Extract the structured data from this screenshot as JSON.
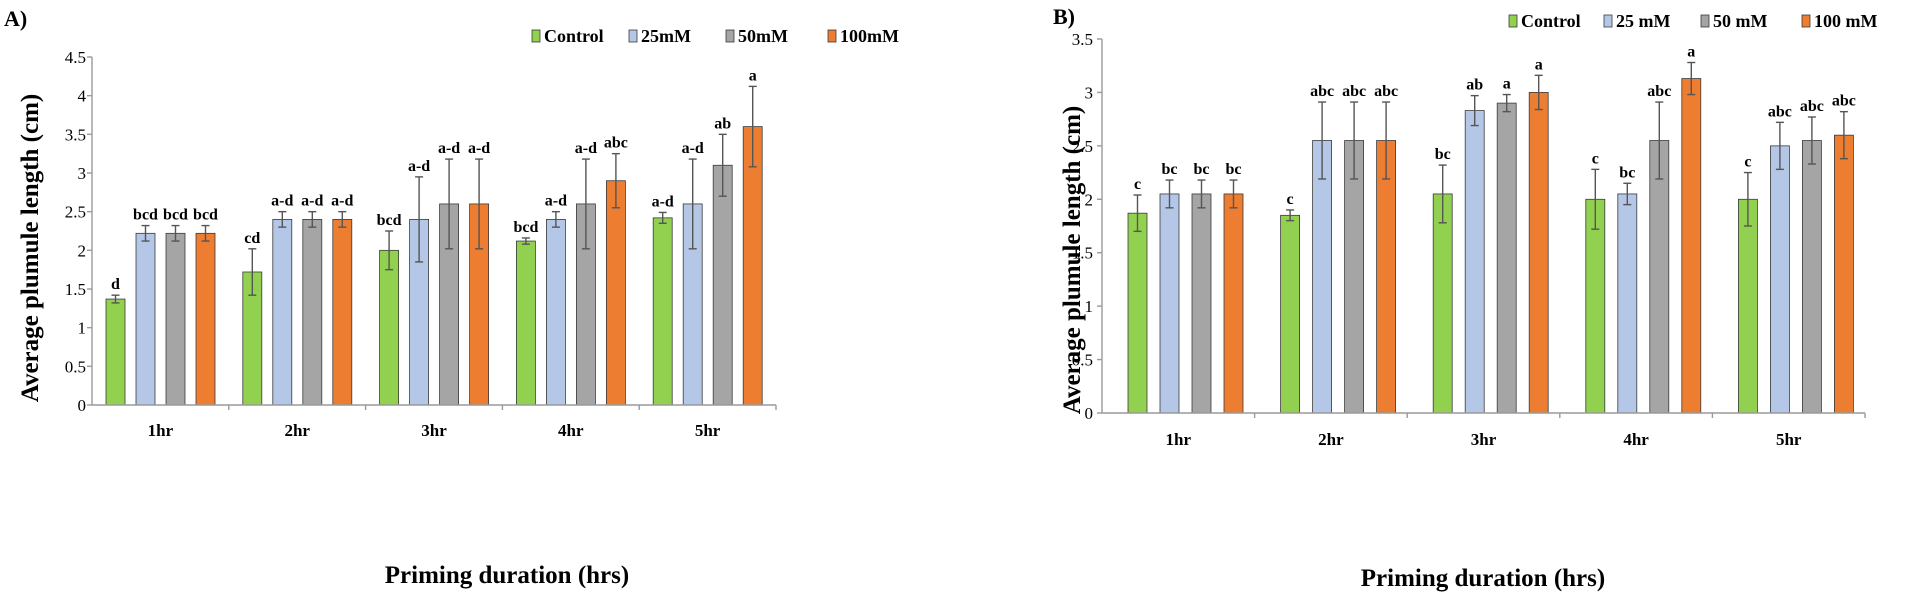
{
  "chart_data": [
    {
      "type": "bar",
      "panel_label": "A)",
      "categories": [
        "1hr",
        "2hr",
        "3hr",
        "4hr",
        "5hr"
      ],
      "xlabel": "Priming duration  (hrs)",
      "ylabel": "Average plumule length (cm)",
      "ylim": [
        0,
        4.5
      ],
      "yticks": [
        "0",
        "0.5",
        "1",
        "1.5",
        "2",
        "2.5",
        "3",
        "3.5",
        "4",
        "4.5"
      ],
      "ytick_values": [
        0,
        0.5,
        1,
        1.5,
        2,
        2.5,
        3,
        3.5,
        4,
        4.5
      ],
      "legend_position": "top-right",
      "series": [
        {
          "name": "Control",
          "color": "#92d050",
          "values": [
            1.37,
            1.72,
            2.0,
            2.12,
            2.42
          ],
          "errors": [
            0.05,
            0.3,
            0.25,
            0.04,
            0.07
          ],
          "labels": [
            "d",
            "cd",
            "bcd",
            "bcd",
            "a-d"
          ]
        },
        {
          "name": "25mM",
          "color": "#b4c7e7",
          "values": [
            2.22,
            2.4,
            2.4,
            2.4,
            2.6
          ],
          "errors": [
            0.1,
            0.1,
            0.55,
            0.1,
            0.58
          ],
          "labels": [
            "bcd",
            "a-d",
            "a-d",
            "a-d",
            "a-d"
          ]
        },
        {
          "name": "50mM",
          "color": "#a5a5a5",
          "values": [
            2.22,
            2.4,
            2.6,
            2.6,
            3.1
          ],
          "errors": [
            0.1,
            0.1,
            0.58,
            0.58,
            0.4
          ],
          "labels": [
            "bcd",
            "a-d",
            "a-d",
            "a-d",
            "ab"
          ]
        },
        {
          "name": "100mM",
          "color": "#ed7d31",
          "values": [
            2.22,
            2.4,
            2.6,
            2.9,
            3.6
          ],
          "errors": [
            0.1,
            0.1,
            0.58,
            0.35,
            0.52
          ],
          "labels": [
            "bcd",
            "a-d",
            "a-d",
            "abc",
            "a"
          ]
        }
      ]
    },
    {
      "type": "bar",
      "panel_label": "B)",
      "categories": [
        "1hr",
        "2hr",
        "3hr",
        "4hr",
        "5hr"
      ],
      "xlabel": "Priming duration  (hrs)",
      "ylabel": "Average plumule length (cm)",
      "ylim": [
        0,
        3.5
      ],
      "yticks": [
        "0",
        "0.5",
        "1",
        "1.5",
        "2",
        "2.5",
        "3",
        "3.5"
      ],
      "ytick_values": [
        0,
        0.5,
        1,
        1.5,
        2,
        2.5,
        3,
        3.5
      ],
      "legend_position": "top-right",
      "series": [
        {
          "name": "Control",
          "color": "#92d050",
          "values": [
            1.87,
            1.85,
            2.05,
            2.0,
            2.0
          ],
          "errors": [
            0.17,
            0.05,
            0.27,
            0.28,
            0.25
          ],
          "labels": [
            "c",
            "c",
            "bc",
            "c",
            "c"
          ]
        },
        {
          "name": "25 mM",
          "color": "#b4c7e7",
          "values": [
            2.05,
            2.55,
            2.83,
            2.05,
            2.5
          ],
          "errors": [
            0.13,
            0.36,
            0.14,
            0.1,
            0.22
          ],
          "labels": [
            "bc",
            "abc",
            "ab",
            "bc",
            "abc"
          ]
        },
        {
          "name": "50 mM",
          "color": "#a5a5a5",
          "values": [
            2.05,
            2.55,
            2.9,
            2.55,
            2.55
          ],
          "errors": [
            0.13,
            0.36,
            0.08,
            0.36,
            0.22
          ],
          "labels": [
            "bc",
            "abc",
            "a",
            "abc",
            "abc"
          ]
        },
        {
          "name": "100 mM",
          "color": "#ed7d31",
          "values": [
            2.05,
            2.55,
            3.0,
            3.13,
            2.6
          ],
          "errors": [
            0.13,
            0.36,
            0.16,
            0.15,
            0.22
          ],
          "labels": [
            "bc",
            "abc",
            "a",
            "a",
            "abc"
          ]
        }
      ]
    }
  ]
}
